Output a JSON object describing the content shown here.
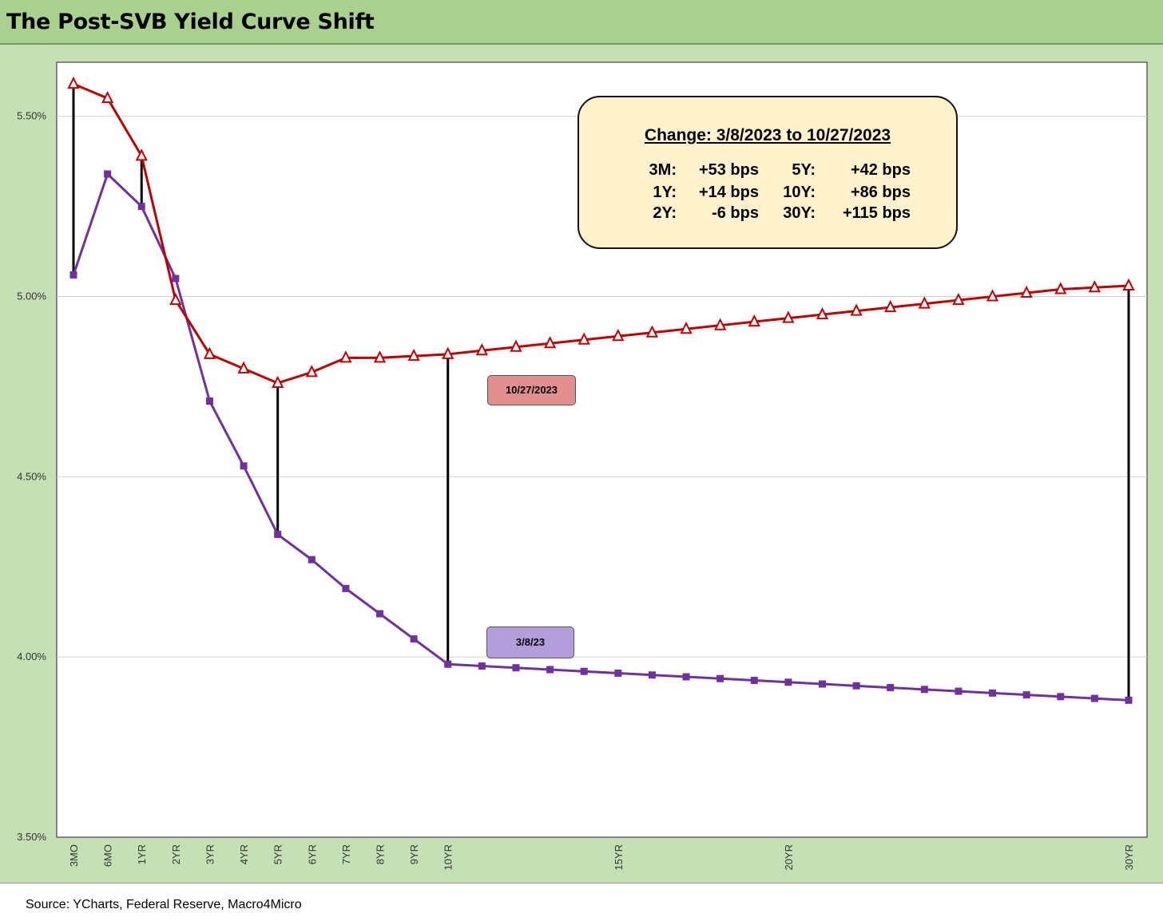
{
  "title": "The Post-SVB Yield Curve Shift",
  "source": "Source: YCharts, Federal Reserve, Macro4Micro",
  "colors": {
    "background": "#c5e0b4",
    "title_bar": "#a9d08e",
    "series_oct": "#c00000",
    "series_mar": "#7030a0",
    "change_box": "#fff2cc"
  },
  "change_box": {
    "title": "Change: 3/8/2023 to 10/27/2023",
    "rows": [
      {
        "left_label": "3M:",
        "left_value": "+53 bps",
        "right_label": "5Y:",
        "right_value": "+42 bps"
      },
      {
        "left_label": "1Y:",
        "left_value": "+14 bps",
        "right_label": "10Y:",
        "right_value": "+86 bps"
      },
      {
        "left_label": "2Y:",
        "left_value": "-6 bps",
        "right_label": "30Y:",
        "right_value": "+115 bps"
      }
    ]
  },
  "series_labels": {
    "oct": "10/27/2023",
    "mar": "3/8/23"
  },
  "chart_data": {
    "type": "line",
    "title": "The Post-SVB Yield Curve Shift",
    "y_tick_labels": [
      "3.50%",
      "4.00%",
      "4.50%",
      "5.00%",
      "5.50%"
    ],
    "y_ticks": [
      3.5,
      4.0,
      4.5,
      5.0,
      5.5
    ],
    "ylim": [
      3.5,
      5.65
    ],
    "x_index_range": [
      0,
      31
    ],
    "x_tick_labels": [
      {
        "label": "3MO",
        "index": 0
      },
      {
        "label": "6MO",
        "index": 1
      },
      {
        "label": "1YR",
        "index": 2
      },
      {
        "label": "2YR",
        "index": 3
      },
      {
        "label": "3YR",
        "index": 4
      },
      {
        "label": "4YR",
        "index": 5
      },
      {
        "label": "5YR",
        "index": 6
      },
      {
        "label": "6YR",
        "index": 7
      },
      {
        "label": "7YR",
        "index": 8
      },
      {
        "label": "8YR",
        "index": 9
      },
      {
        "label": "9YR",
        "index": 10
      },
      {
        "label": "10YR",
        "index": 11
      },
      {
        "label": "15YR",
        "index": 16
      },
      {
        "label": "20YR",
        "index": 21
      },
      {
        "label": "30YR",
        "index": 31
      }
    ],
    "grid": true,
    "series": [
      {
        "name": "10/27/2023",
        "marker": "triangle",
        "values": [
          5.59,
          5.55,
          5.39,
          4.99,
          4.84,
          4.8,
          4.76,
          4.79,
          4.83,
          4.83,
          4.835,
          4.84,
          4.85,
          4.86,
          4.87,
          4.88,
          4.89,
          4.9,
          4.91,
          4.92,
          4.93,
          4.94,
          4.95,
          4.96,
          4.97,
          4.98,
          4.99,
          5.0,
          5.01,
          5.02,
          5.025,
          5.03
        ]
      },
      {
        "name": "3/8/23",
        "marker": "square",
        "values": [
          5.06,
          5.34,
          5.25,
          5.05,
          4.71,
          4.53,
          4.34,
          4.27,
          4.19,
          4.12,
          4.05,
          3.98,
          3.975,
          3.97,
          3.965,
          3.96,
          3.955,
          3.95,
          3.945,
          3.94,
          3.935,
          3.93,
          3.925,
          3.92,
          3.915,
          3.91,
          3.905,
          3.9,
          3.895,
          3.89,
          3.885,
          3.88
        ]
      }
    ],
    "change_connectors_at_index": [
      0,
      2,
      6,
      11,
      31
    ]
  }
}
